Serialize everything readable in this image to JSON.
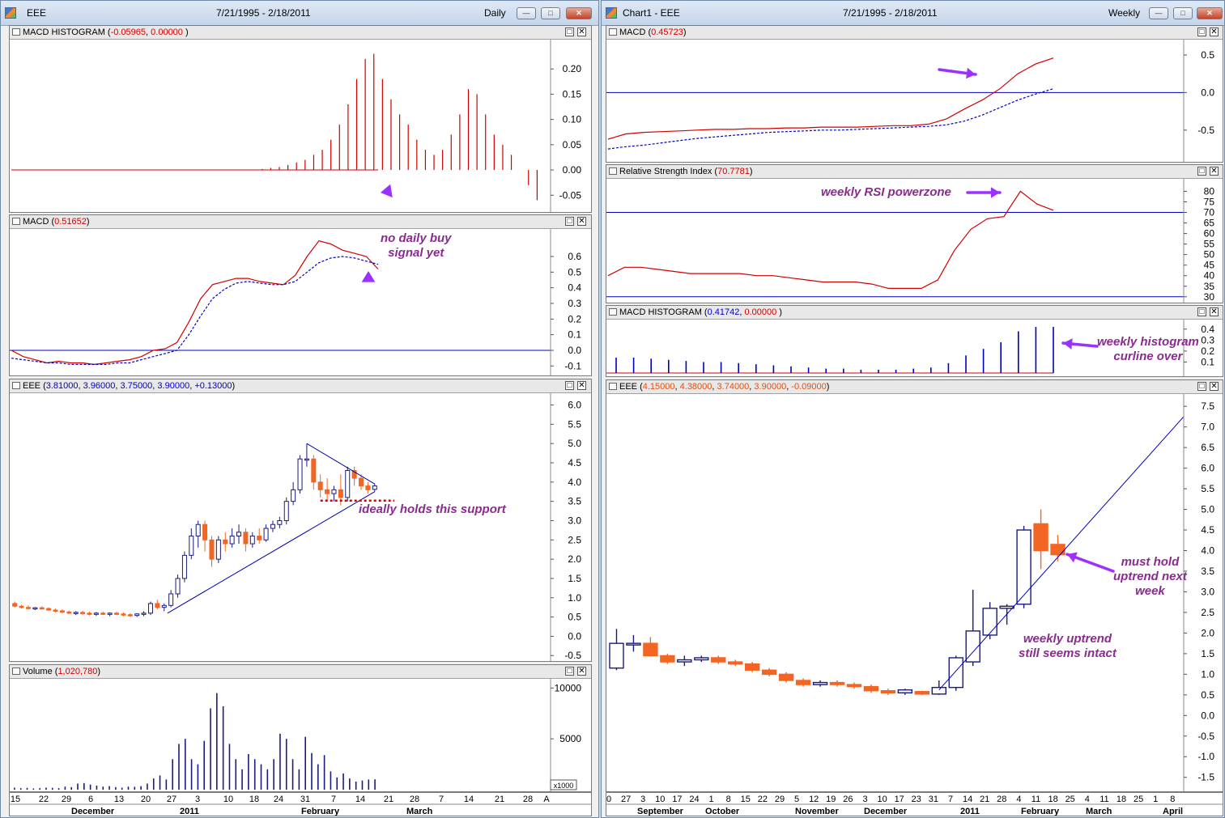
{
  "left_window": {
    "title": "EEE",
    "date_range": "7/21/1995 - 2/18/2011",
    "period": "Daily"
  },
  "right_window": {
    "title": "Chart1 - EEE",
    "date_range": "7/21/1995 - 2/18/2011",
    "period": "Weekly"
  },
  "left_panes": {
    "macd_hist": {
      "label": "MACD HISTOGRAM",
      "v1": "-0.05965",
      "v2": "0.00000",
      "ticks": [
        "0.20",
        "0.15",
        "0.10",
        "0.05",
        "0.00",
        "-0.05"
      ]
    },
    "macd": {
      "label": "MACD",
      "v1": "0.51652",
      "ticks": [
        "0.6",
        "0.5",
        "0.4",
        "0.3",
        "0.2",
        "0.1",
        "0.0",
        "-0.1"
      ]
    },
    "price": {
      "label": "EEE",
      "v1": "3.81000",
      "v2": "3.96000",
      "v3": "3.75000",
      "v4": "3.90000",
      "v5": "+0.13000",
      "ticks": [
        "6.0",
        "5.5",
        "5.0",
        "4.5",
        "4.0",
        "3.5",
        "3.0",
        "2.5",
        "2.0",
        "1.5",
        "1.0",
        "0.5",
        "0.0",
        "-0.5"
      ]
    },
    "volume": {
      "label": "Volume",
      "v1": "1,020,780",
      "ticks": [
        "10000",
        "5000"
      ],
      "scale": "x1000"
    },
    "x_days": [
      "15",
      "22",
      "29",
      "6",
      "13",
      "20",
      "27",
      "3",
      "10",
      "18",
      "24",
      "31",
      "7",
      "14",
      "21",
      "28",
      "7",
      "14",
      "21",
      "28",
      "A"
    ],
    "x_months": [
      "December",
      "2011",
      "February",
      "March"
    ]
  },
  "right_panes": {
    "macd": {
      "label": "MACD",
      "v1": "0.45723",
      "ticks": [
        "0.5",
        "0.0",
        "-0.5"
      ]
    },
    "rsi": {
      "label": "Relative Strength Index",
      "v1": "70.7781",
      "ticks": [
        "80",
        "75",
        "70",
        "65",
        "60",
        "55",
        "50",
        "45",
        "40",
        "35",
        "30"
      ]
    },
    "macd_hist": {
      "label": "MACD HISTOGRAM",
      "v1": "0.41742",
      "v2": "0.00000",
      "ticks": [
        "0.4",
        "0.3",
        "0.2",
        "0.1"
      ]
    },
    "price": {
      "label": "EEE",
      "v1": "4.15000",
      "v2": "4.38000",
      "v3": "3.74000",
      "v4": "3.90000",
      "v5": "-0.09000",
      "ticks": [
        "7.5",
        "7.0",
        "6.5",
        "6.0",
        "5.5",
        "5.0",
        "4.5",
        "4.0",
        "3.5",
        "3.0",
        "2.5",
        "2.0",
        "1.5",
        "1.0",
        "0.5",
        "0.0",
        "-0.5",
        "-1.0",
        "-1.5"
      ]
    },
    "x_days": [
      "0",
      "27",
      "3",
      "10",
      "17",
      "24",
      "1",
      "8",
      "15",
      "22",
      "29",
      "5",
      "12",
      "19",
      "26",
      "3",
      "10",
      "17",
      "23",
      "31",
      "7",
      "14",
      "21",
      "28",
      "4",
      "11",
      "18",
      "25",
      "4",
      "11",
      "18",
      "25",
      "1",
      "8"
    ],
    "x_months": [
      "September",
      "October",
      "November",
      "December",
      "2011",
      "February",
      "March",
      "April"
    ]
  },
  "annotations": {
    "no_daily_buy": "no daily buy\nsignal yet",
    "support": "ideally holds this support",
    "rsi_powerzone": "weekly RSI powerzone",
    "hist_curl": "weekly histogram\ncurline over",
    "must_hold": "must hold\nuptrend next\nweek",
    "uptrend_intact": "weekly uptrend\nstill seems intact"
  },
  "colors": {
    "up_candle": "#1a1a80",
    "down_candle": "#f26522",
    "macd_line": "#d00000",
    "signal_line": "#0000c0",
    "annotation": "#8a2b8f",
    "arrow": "#9b30ff"
  },
  "chart_data": [
    {
      "type": "bar",
      "panel": "Daily MACD Histogram",
      "ylim": [
        -0.08,
        0.25
      ],
      "values": [
        0.0,
        0.0,
        0.0,
        0.0,
        0.0,
        0.0,
        0.0,
        0.0,
        0.0,
        0.0,
        0.0,
        0.0,
        0.0,
        0.0,
        0.0,
        0.0,
        0.0,
        0.0,
        0.0,
        0.0,
        0.0,
        0.0,
        0.0,
        0.0,
        0.0,
        0.0,
        0.0,
        0.0,
        0.0,
        0.002,
        0.004,
        0.006,
        0.01,
        0.015,
        0.02,
        0.03,
        0.04,
        0.06,
        0.09,
        0.13,
        0.18,
        0.22,
        0.23,
        0.18,
        0.14,
        0.11,
        0.09,
        0.06,
        0.04,
        0.03,
        0.04,
        0.07,
        0.11,
        0.16,
        0.15,
        0.11,
        0.07,
        0.05,
        0.03,
        0.0,
        -0.03,
        -0.06
      ]
    },
    {
      "type": "line",
      "panel": "Daily MACD",
      "ylim": [
        -0.15,
        0.75
      ],
      "series": [
        {
          "values": [
            0.0,
            -0.04,
            -0.06,
            -0.08,
            -0.07,
            -0.08,
            -0.08,
            -0.09,
            -0.08,
            -0.07,
            -0.06,
            -0.04,
            0.0,
            0.01,
            0.05,
            0.18,
            0.33,
            0.42,
            0.44,
            0.46,
            0.46,
            0.44,
            0.43,
            0.42,
            0.48,
            0.6,
            0.7,
            0.68,
            0.64,
            0.62,
            0.6,
            0.52
          ]
        },
        {
          "values": [
            -0.05,
            -0.06,
            -0.07,
            -0.08,
            -0.08,
            -0.09,
            -0.09,
            -0.09,
            -0.09,
            -0.08,
            -0.08,
            -0.06,
            -0.04,
            -0.02,
            0.0,
            0.1,
            0.22,
            0.33,
            0.39,
            0.43,
            0.44,
            0.43,
            0.42,
            0.42,
            0.44,
            0.5,
            0.56,
            0.59,
            0.6,
            0.59,
            0.57,
            0.55
          ]
        }
      ]
    },
    {
      "type": "candlestick",
      "panel": "Daily EEE",
      "ylim": [
        -0.6,
        6.2
      ],
      "ohlc": [
        [
          0.85,
          0.9,
          0.75,
          0.78
        ],
        [
          0.78,
          0.82,
          0.72,
          0.75
        ],
        [
          0.75,
          0.8,
          0.7,
          0.72
        ],
        [
          0.72,
          0.76,
          0.68,
          0.74
        ],
        [
          0.74,
          0.78,
          0.7,
          0.72
        ],
        [
          0.72,
          0.75,
          0.66,
          0.68
        ],
        [
          0.68,
          0.72,
          0.62,
          0.66
        ],
        [
          0.66,
          0.7,
          0.6,
          0.63
        ],
        [
          0.63,
          0.67,
          0.58,
          0.6
        ],
        [
          0.6,
          0.65,
          0.55,
          0.62
        ],
        [
          0.62,
          0.66,
          0.56,
          0.6
        ],
        [
          0.6,
          0.64,
          0.54,
          0.58
        ],
        [
          0.58,
          0.63,
          0.53,
          0.6
        ],
        [
          0.6,
          0.64,
          0.55,
          0.57
        ],
        [
          0.57,
          0.62,
          0.52,
          0.6
        ],
        [
          0.6,
          0.64,
          0.55,
          0.58
        ],
        [
          0.58,
          0.62,
          0.52,
          0.56
        ],
        [
          0.56,
          0.6,
          0.5,
          0.54
        ],
        [
          0.54,
          0.6,
          0.5,
          0.58
        ],
        [
          0.58,
          0.65,
          0.52,
          0.6
        ],
        [
          0.6,
          0.9,
          0.55,
          0.85
        ],
        [
          0.85,
          0.95,
          0.7,
          0.75
        ],
        [
          0.75,
          0.85,
          0.65,
          0.8
        ],
        [
          0.8,
          1.2,
          0.75,
          1.1
        ],
        [
          1.1,
          1.6,
          1.0,
          1.5
        ],
        [
          1.5,
          2.2,
          1.4,
          2.1
        ],
        [
          2.1,
          2.8,
          2.0,
          2.6
        ],
        [
          2.6,
          3.0,
          2.3,
          2.9
        ],
        [
          2.9,
          3.0,
          2.2,
          2.5
        ],
        [
          2.5,
          2.6,
          1.8,
          2.0
        ],
        [
          2.0,
          2.6,
          1.9,
          2.5
        ],
        [
          2.5,
          2.7,
          2.2,
          2.4
        ],
        [
          2.4,
          2.8,
          2.3,
          2.6
        ],
        [
          2.6,
          2.9,
          2.4,
          2.7
        ],
        [
          2.7,
          2.8,
          2.2,
          2.4
        ],
        [
          2.4,
          2.7,
          2.3,
          2.6
        ],
        [
          2.6,
          2.8,
          2.4,
          2.5
        ],
        [
          2.5,
          2.9,
          2.45,
          2.8
        ],
        [
          2.8,
          3.0,
          2.7,
          2.9
        ],
        [
          2.9,
          3.1,
          2.8,
          3.0
        ],
        [
          3.0,
          3.6,
          2.9,
          3.5
        ],
        [
          3.5,
          4.0,
          3.4,
          3.8
        ],
        [
          3.8,
          4.7,
          3.7,
          4.6
        ],
        [
          4.6,
          5.0,
          4.4,
          4.6
        ],
        [
          4.6,
          4.7,
          3.8,
          4.0
        ],
        [
          4.0,
          4.2,
          3.6,
          3.8
        ],
        [
          3.8,
          4.1,
          3.5,
          3.7
        ],
        [
          3.7,
          3.9,
          3.5,
          3.8
        ],
        [
          3.8,
          4.2,
          3.4,
          3.6
        ],
        [
          3.6,
          4.4,
          3.5,
          4.3
        ],
        [
          4.3,
          4.4,
          3.9,
          4.1
        ],
        [
          4.1,
          4.2,
          3.8,
          3.9
        ],
        [
          3.9,
          4.0,
          3.7,
          3.8
        ],
        [
          3.81,
          3.96,
          3.75,
          3.9
        ]
      ]
    },
    {
      "type": "bar",
      "panel": "Daily Volume (x1000)",
      "ylim": [
        0,
        10500
      ],
      "values": [
        200,
        150,
        180,
        120,
        150,
        200,
        180,
        150,
        300,
        250,
        600,
        650,
        500,
        400,
        300,
        350,
        250,
        200,
        300,
        280,
        350,
        600,
        1100,
        1400,
        1000,
        3000,
        4500,
        5000,
        3000,
        2500,
        4800,
        8000,
        9500,
        8200,
        4500,
        3000,
        2000,
        3500,
        3000,
        2500,
        2000,
        3000,
        5500,
        5000,
        3000,
        2000,
        5200,
        3600,
        2500,
        3400,
        1800,
        1200,
        1600,
        1100,
        800,
        900,
        1000,
        1020
      ]
    },
    {
      "type": "line",
      "panel": "Weekly MACD",
      "ylim": [
        -0.9,
        0.65
      ],
      "series": [
        {
          "values": [
            -0.62,
            -0.55,
            -0.53,
            -0.52,
            -0.51,
            -0.5,
            -0.49,
            -0.49,
            -0.48,
            -0.48,
            -0.47,
            -0.47,
            -0.46,
            -0.46,
            -0.46,
            -0.45,
            -0.44,
            -0.44,
            -0.42,
            -0.35,
            -0.22,
            -0.1,
            0.05,
            0.25,
            0.38,
            0.46
          ]
        },
        {
          "values": [
            -0.75,
            -0.72,
            -0.7,
            -0.67,
            -0.64,
            -0.61,
            -0.59,
            -0.57,
            -0.55,
            -0.53,
            -0.52,
            -0.51,
            -0.5,
            -0.5,
            -0.49,
            -0.48,
            -0.47,
            -0.46,
            -0.45,
            -0.43,
            -0.38,
            -0.3,
            -0.2,
            -0.1,
            -0.02,
            0.05
          ]
        }
      ]
    },
    {
      "type": "line",
      "panel": "Weekly RSI",
      "ylim": [
        28,
        84
      ],
      "series": [
        {
          "values": [
            40,
            44,
            44,
            43,
            42,
            41,
            41,
            41,
            41,
            40,
            40,
            39,
            38,
            37,
            37,
            37,
            36,
            34,
            34,
            34,
            38,
            52,
            62,
            67,
            68,
            80,
            74,
            71
          ]
        }
      ]
    },
    {
      "type": "bar",
      "panel": "Weekly MACD Histogram",
      "ylim": [
        0,
        0.45
      ],
      "values": [
        0.14,
        0.14,
        0.13,
        0.12,
        0.11,
        0.1,
        0.1,
        0.09,
        0.08,
        0.07,
        0.06,
        0.05,
        0.04,
        0.04,
        0.03,
        0.03,
        0.03,
        0.04,
        0.05,
        0.09,
        0.16,
        0.22,
        0.28,
        0.38,
        0.42,
        0.42
      ]
    },
    {
      "type": "candlestick",
      "panel": "Weekly EEE",
      "ylim": [
        -1.8,
        7.7
      ],
      "ohlc": [
        [
          1.15,
          2.1,
          1.1,
          1.75
        ],
        [
          1.75,
          1.95,
          1.55,
          1.75
        ],
        [
          1.75,
          1.9,
          1.45,
          1.45
        ],
        [
          1.45,
          1.5,
          1.25,
          1.3
        ],
        [
          1.3,
          1.45,
          1.2,
          1.35
        ],
        [
          1.35,
          1.45,
          1.3,
          1.4
        ],
        [
          1.4,
          1.45,
          1.25,
          1.3
        ],
        [
          1.3,
          1.35,
          1.2,
          1.25
        ],
        [
          1.25,
          1.3,
          1.05,
          1.1
        ],
        [
          1.1,
          1.15,
          0.95,
          1.0
        ],
        [
          1.0,
          1.05,
          0.8,
          0.85
        ],
        [
          0.85,
          0.9,
          0.7,
          0.75
        ],
        [
          0.75,
          0.85,
          0.7,
          0.8
        ],
        [
          0.8,
          0.85,
          0.7,
          0.75
        ],
        [
          0.75,
          0.8,
          0.65,
          0.7
        ],
        [
          0.7,
          0.75,
          0.55,
          0.6
        ],
        [
          0.6,
          0.65,
          0.5,
          0.55
        ],
        [
          0.55,
          0.65,
          0.5,
          0.62
        ],
        [
          0.58,
          0.6,
          0.5,
          0.52
        ],
        [
          0.52,
          0.85,
          0.5,
          0.68
        ],
        [
          0.68,
          1.45,
          0.6,
          1.4
        ],
        [
          1.3,
          3.05,
          1.2,
          2.05
        ],
        [
          1.95,
          2.75,
          1.85,
          2.6
        ],
        [
          2.6,
          2.7,
          2.2,
          2.65
        ],
        [
          2.7,
          4.6,
          2.6,
          4.5
        ],
        [
          4.65,
          5.0,
          3.55,
          4.0
        ],
        [
          4.15,
          4.38,
          3.74,
          3.9
        ]
      ]
    }
  ]
}
